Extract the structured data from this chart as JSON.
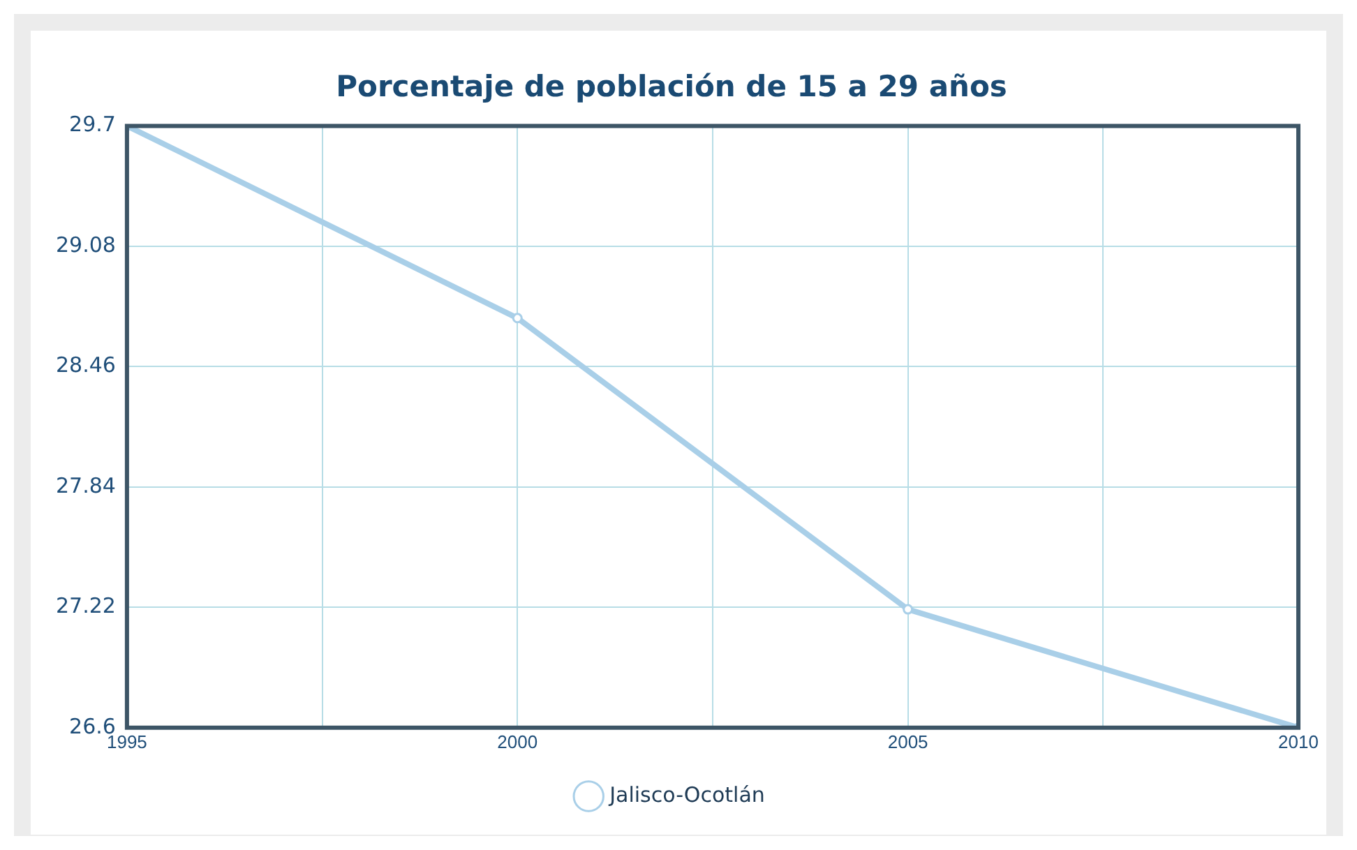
{
  "chart_data": {
    "type": "line",
    "title": "Porcentaje de población de 15 a 29 años",
    "x": [
      1995,
      2000,
      2005,
      2010
    ],
    "series": [
      {
        "name": "Jalisco-Ocotlán",
        "color": "#a9cfe8",
        "values": [
          29.7,
          28.71,
          27.21,
          26.6
        ]
      }
    ],
    "xlim": [
      1995,
      2010
    ],
    "xticks": [
      1995,
      {
        "value": 1997.5,
        "label": null
      },
      2000,
      {
        "value": 2002.5,
        "label": null
      },
      2005,
      {
        "value": 2007.5,
        "label": null
      },
      2010
    ],
    "ylim": [
      26.6,
      29.7
    ],
    "yticks": [
      26.6,
      27.22,
      27.84,
      28.46,
      29.08,
      29.7
    ],
    "grid": true,
    "legend": "bottom",
    "marker": "circle",
    "line_style": "solid"
  }
}
